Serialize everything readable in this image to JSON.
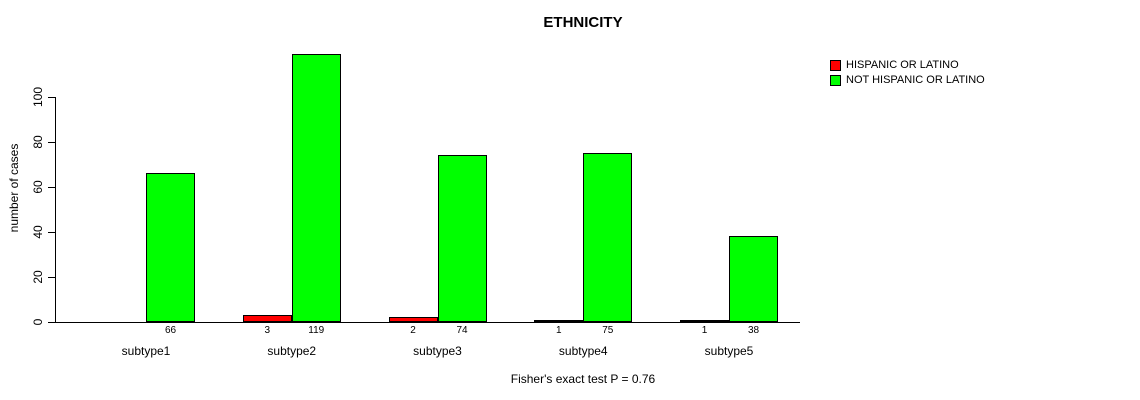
{
  "chart_data": {
    "type": "bar",
    "title": "ETHNICITY",
    "ylabel": "number of cases",
    "xlabel": "",
    "categories": [
      "subtype1",
      "subtype2",
      "subtype3",
      "subtype4",
      "subtype5"
    ],
    "series": [
      {
        "name": "HISPANIC OR LATINO",
        "color": "#FF0000",
        "values": [
          0,
          3,
          2,
          1,
          1
        ],
        "labels": [
          "",
          "3",
          "2",
          "1",
          "1"
        ]
      },
      {
        "name": "NOT HISPANIC OR LATINO",
        "color": "#00FF00",
        "values": [
          66,
          119,
          74,
          75,
          38
        ],
        "labels": [
          "66",
          "119",
          "74",
          "75",
          "38"
        ]
      }
    ],
    "yticks": [
      0,
      20,
      40,
      60,
      80,
      100
    ],
    "ylim": [
      0,
      120
    ],
    "grid": false,
    "legend_position": "top-right",
    "annotation": "Fisher's exact test P = 0.76"
  }
}
